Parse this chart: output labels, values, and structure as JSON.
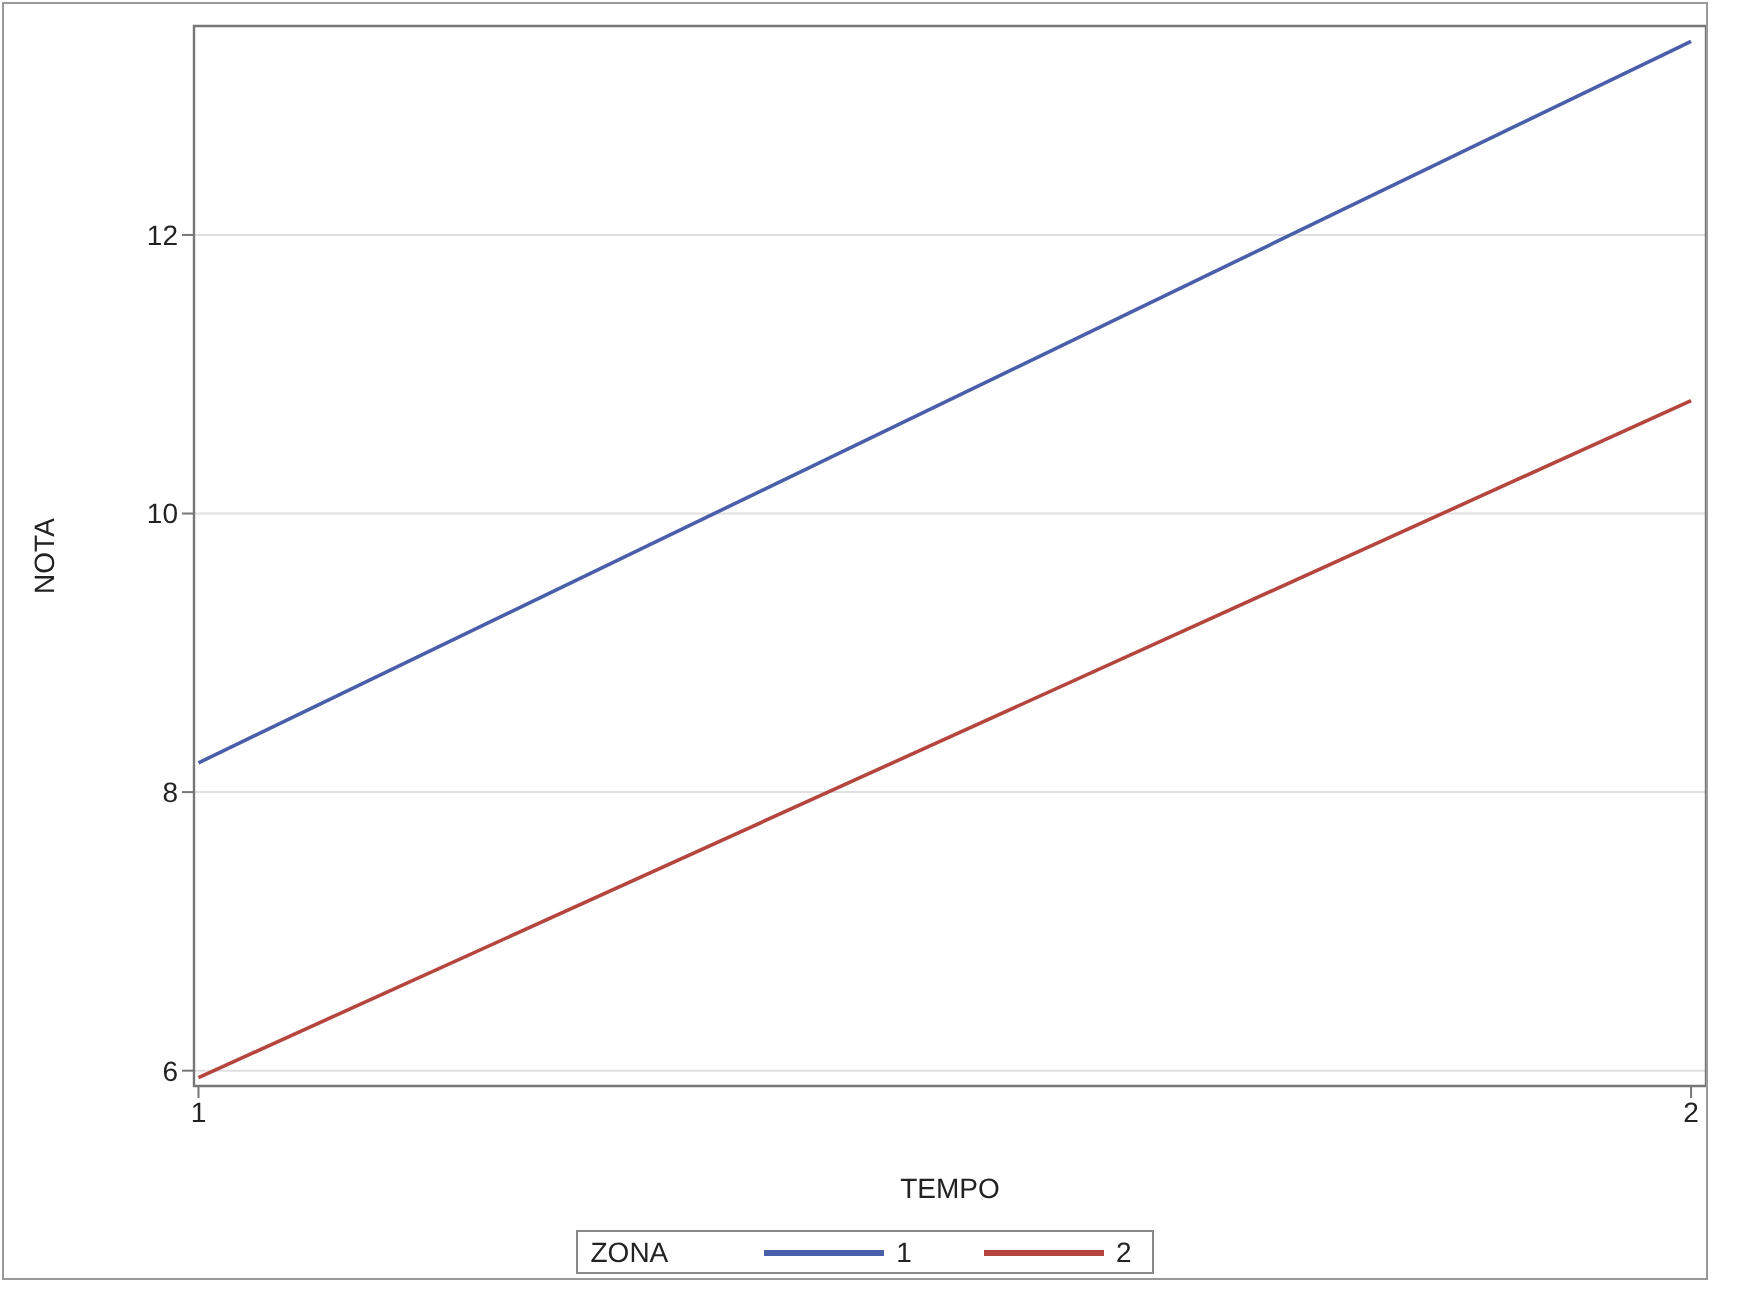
{
  "chart_data": {
    "type": "line",
    "xlabel": "TEMPO",
    "ylabel": "NOTA",
    "legend_title": "ZONA",
    "x": [
      1,
      2
    ],
    "series": [
      {
        "name": "1",
        "color": "#4a5faa",
        "values": [
          8.21,
          13.39
        ]
      },
      {
        "name": "2",
        "color": "#b5463d",
        "values": [
          5.95,
          10.81
        ]
      }
    ],
    "xlim": [
      0.997,
      2.01
    ],
    "xticks": [
      1,
      2
    ],
    "ylim": [
      5.89,
      13.5
    ],
    "yticks": [
      6,
      8,
      10,
      12
    ],
    "grid": "y",
    "legend": "bottom",
    "marker": "none",
    "line_style": "solid"
  }
}
